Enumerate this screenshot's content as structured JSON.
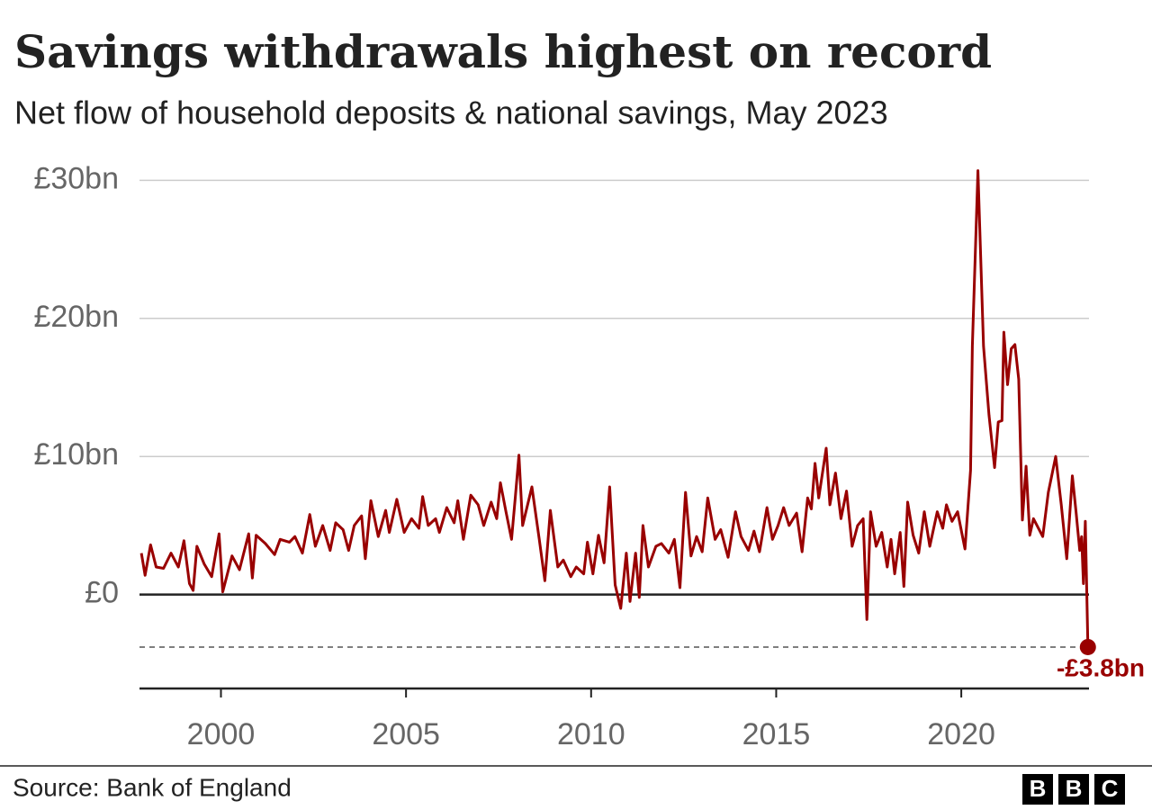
{
  "chart_data": {
    "type": "line",
    "title": "Savings withdrawals highest on record",
    "subtitle": "Net flow of household deposits & national savings, May 2023",
    "source": "Source: Bank of England",
    "logo": [
      "B",
      "B",
      "C"
    ],
    "xlim": [
      1997.8,
      2023.45
    ],
    "xticks": [
      2000,
      2005,
      2010,
      2015,
      2020
    ],
    "ylim": [
      -6.8,
      31
    ],
    "yticks": [
      {
        "value": 0,
        "label": "£0"
      },
      {
        "value": 10,
        "label": "£10bn"
      },
      {
        "value": 20,
        "label": "£20bn"
      },
      {
        "value": 30,
        "label": "£30bn"
      }
    ],
    "grid": true,
    "annotation": {
      "label": "-£3.8bn",
      "value": -3.8
    },
    "x": [
      1997.85,
      1997.95,
      1998.1,
      1998.25,
      1998.45,
      1998.65,
      1998.85,
      1999.0,
      1999.15,
      1999.25,
      1999.35,
      1999.55,
      1999.75,
      1999.95,
      2000.05,
      2000.3,
      2000.5,
      2000.75,
      2000.85,
      2000.95,
      2001.2,
      2001.45,
      2001.6,
      2001.85,
      2002.0,
      2002.2,
      2002.4,
      2002.55,
      2002.75,
      2002.95,
      2003.1,
      2003.3,
      2003.45,
      2003.6,
      2003.8,
      2003.9,
      2004.05,
      2004.25,
      2004.45,
      2004.55,
      2004.75,
      2004.95,
      2005.15,
      2005.35,
      2005.45,
      2005.6,
      2005.8,
      2005.9,
      2006.1,
      2006.3,
      2006.4,
      2006.55,
      2006.75,
      2006.95,
      2007.1,
      2007.3,
      2007.45,
      2007.55,
      2007.7,
      2007.85,
      2007.95,
      2008.05,
      2008.15,
      2008.4,
      2008.6,
      2008.75,
      2008.9,
      2009.1,
      2009.25,
      2009.45,
      2009.6,
      2009.8,
      2009.9,
      2010.05,
      2010.2,
      2010.35,
      2010.5,
      2010.65,
      2010.8,
      2010.95,
      2011.05,
      2011.2,
      2011.3,
      2011.4,
      2011.55,
      2011.75,
      2011.9,
      2012.1,
      2012.25,
      2012.4,
      2012.55,
      2012.7,
      2012.85,
      2013.0,
      2013.15,
      2013.35,
      2013.5,
      2013.7,
      2013.9,
      2014.05,
      2014.25,
      2014.4,
      2014.55,
      2014.75,
      2014.9,
      2015.05,
      2015.2,
      2015.35,
      2015.55,
      2015.7,
      2015.85,
      2015.95,
      2016.05,
      2016.15,
      2016.35,
      2016.45,
      2016.6,
      2016.75,
      2016.9,
      2017.05,
      2017.2,
      2017.35,
      2017.45,
      2017.55,
      2017.7,
      2017.85,
      2018.0,
      2018.1,
      2018.2,
      2018.35,
      2018.45,
      2018.55,
      2018.7,
      2018.85,
      2019.0,
      2019.15,
      2019.35,
      2019.5,
      2019.6,
      2019.75,
      2019.9,
      2020.1,
      2020.25,
      2020.3,
      2020.45,
      2020.6,
      2020.75,
      2020.9,
      2021.0,
      2021.1,
      2021.15,
      2021.25,
      2021.35,
      2021.45,
      2021.55,
      2021.65,
      2021.75,
      2021.85,
      2021.95,
      2022.2,
      2022.35,
      2022.55,
      2022.7,
      2022.85,
      2023.0,
      2023.1,
      2023.2,
      2023.25,
      2023.3,
      2023.35,
      2023.42
    ],
    "series": [
      {
        "name": "Net flow",
        "color": "#990000",
        "values": [
          3.0,
          1.4,
          3.6,
          2.0,
          1.9,
          3.0,
          2.0,
          3.9,
          0.8,
          0.3,
          3.5,
          2.2,
          1.3,
          4.4,
          0.2,
          2.8,
          1.8,
          4.4,
          1.2,
          4.3,
          3.7,
          2.9,
          4.0,
          3.8,
          4.2,
          3.0,
          5.8,
          3.5,
          5.0,
          3.2,
          5.2,
          4.7,
          3.2,
          5.0,
          5.7,
          2.6,
          6.8,
          4.2,
          6.1,
          4.5,
          6.9,
          4.5,
          5.5,
          4.8,
          7.1,
          5.0,
          5.5,
          4.5,
          6.3,
          5.2,
          6.8,
          4.0,
          7.2,
          6.5,
          5.0,
          6.7,
          5.5,
          8.1,
          6.0,
          4.0,
          7.0,
          10.1,
          5.0,
          7.8,
          4.0,
          1.0,
          6.1,
          2.0,
          2.5,
          1.3,
          2.0,
          1.5,
          3.8,
          1.5,
          4.3,
          2.3,
          7.8,
          0.7,
          -1.0,
          3.0,
          -0.5,
          3.0,
          -0.2,
          5.0,
          2.0,
          3.5,
          3.7,
          3.0,
          4.0,
          0.5,
          7.4,
          2.8,
          4.2,
          3.1,
          7.0,
          4.0,
          4.7,
          2.7,
          6.0,
          4.2,
          3.2,
          4.6,
          3.1,
          6.3,
          4.0,
          5.0,
          6.3,
          5.0,
          5.9,
          3.1,
          7.0,
          6.2,
          9.5,
          7.0,
          10.6,
          6.5,
          8.8,
          5.5,
          7.5,
          3.5,
          5.0,
          5.5,
          -1.8,
          6.0,
          3.5,
          4.5,
          2.0,
          4.0,
          1.5,
          4.5,
          0.6,
          6.7,
          4.3,
          3.0,
          6.0,
          3.5,
          6.0,
          4.8,
          6.5,
          5.3,
          6.0,
          3.3,
          9.0,
          18.0,
          30.7,
          18.0,
          13.0,
          9.2,
          12.5,
          12.6,
          19.0,
          15.2,
          17.8,
          18.1,
          15.6,
          5.4,
          9.3,
          4.3,
          5.5,
          4.2,
          7.4,
          10.0,
          6.5,
          2.6,
          8.6,
          6.0,
          3.2,
          4.2,
          0.8,
          5.3,
          -3.8
        ]
      }
    ]
  }
}
